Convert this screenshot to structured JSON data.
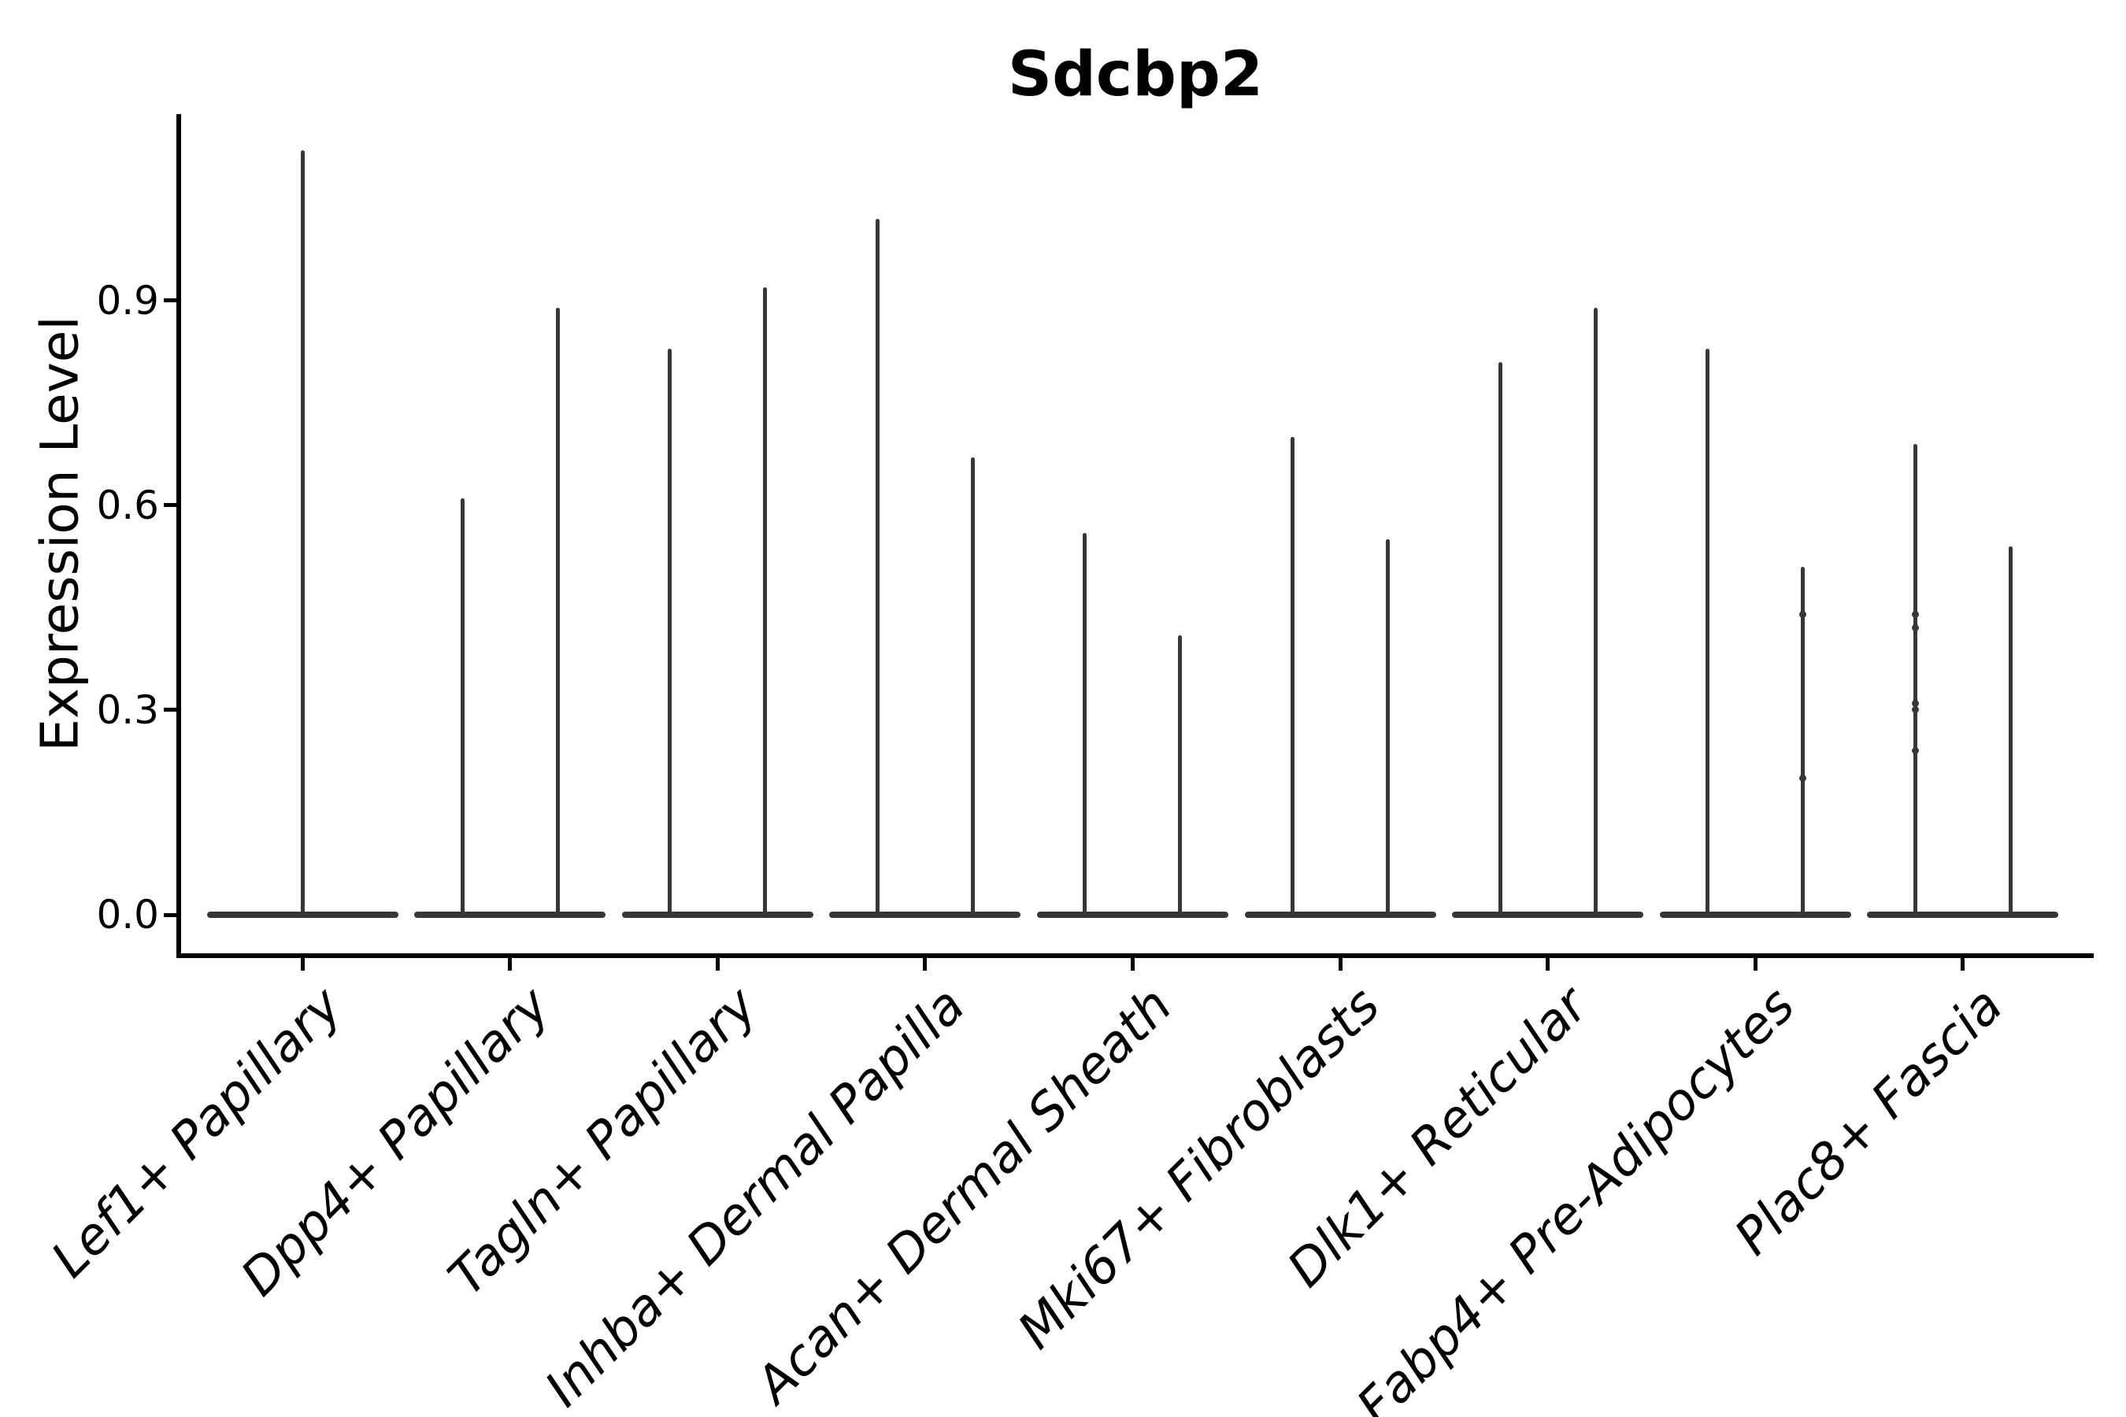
{
  "chart_data": {
    "type": "violin",
    "title": "Sdcbp2",
    "ylabel": "Expression Level",
    "xlabel": "",
    "ylim": [
      0,
      1.17
    ],
    "yticks": [
      0,
      0.3,
      0.6,
      0.9
    ],
    "ytick_labels": [
      "0.0",
      "0.3",
      "0.6",
      "0.9"
    ],
    "x_tick_rotation": 45,
    "grid": false,
    "legend": "none",
    "violin_style": "needle",
    "violin_color": "#373737",
    "axis_color": "#000000",
    "background": "#ffffff",
    "categories": [
      "Lef1+ Papillary",
      "Dpp4+ Papillary",
      "Tagln+ Papillary",
      "Inhba+ Dermal Papilla",
      "Acan+ Dermal Sheath",
      "Mki67+ Fibroblasts",
      "Dlk1+ Reticular",
      "Fabp4+ Pre-Adipocytes",
      "Plac8+ Fascia"
    ],
    "series": [
      {
        "category": "Lef1+ Papillary",
        "violin_max": [
          1.12
        ],
        "dots": []
      },
      {
        "category": "Dpp4+ Papillary",
        "violin_max": [
          0.61,
          0.89
        ],
        "dots": []
      },
      {
        "category": "Tagln+ Papillary",
        "violin_max": [
          0.83,
          0.92
        ],
        "dots": []
      },
      {
        "category": "Inhba+ Dermal Papilla",
        "violin_max": [
          1.02,
          0.67
        ],
        "dots": []
      },
      {
        "category": "Acan+ Dermal Sheath",
        "violin_max": [
          0.56,
          0.41
        ],
        "dots": []
      },
      {
        "category": "Mki67+ Fibroblasts",
        "violin_max": [
          0.7,
          0.55
        ],
        "dots": []
      },
      {
        "category": "Dlk1+ Reticular",
        "violin_max": [
          0.81,
          0.89
        ],
        "dots": []
      },
      {
        "category": "Fabp4+ Pre-Adipocytes",
        "violin_max": [
          0.83,
          0.51
        ],
        "dots": [
          [
            1,
            0.44
          ],
          [
            1,
            0.2
          ]
        ]
      },
      {
        "category": "Plac8+ Fascia",
        "violin_max": [
          0.69,
          0.54
        ],
        "dots": [
          [
            0,
            0.44
          ],
          [
            0,
            0.42
          ],
          [
            0,
            0.31
          ],
          [
            0,
            0.3
          ],
          [
            0,
            0.24
          ]
        ]
      }
    ]
  }
}
